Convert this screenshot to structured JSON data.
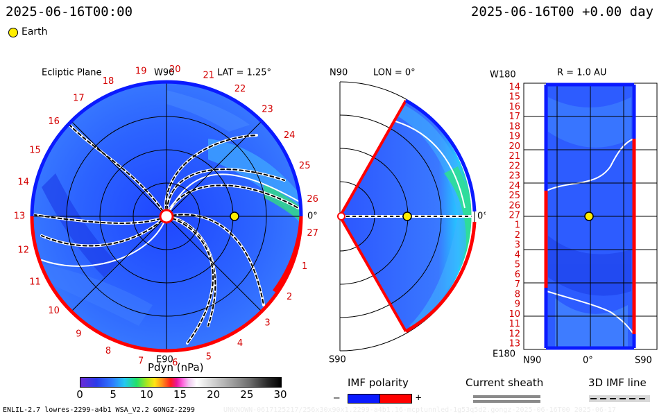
{
  "header": {
    "datetime_left": "2025-06-16T00:00",
    "datetime_right": "2025-06-16T00 +0.00 day",
    "legend_label": "Earth"
  },
  "ecliptic": {
    "title": "Ecliptic Plane",
    "lat": "LAT = 1.25°",
    "top_label": "W90",
    "bottom_label": "E90",
    "right_label": "0°",
    "sectors": [
      "19",
      "20",
      "21",
      "22",
      "23",
      "24",
      "25",
      "26",
      "27",
      "1",
      "2",
      "3",
      "4",
      "5",
      "6",
      "7",
      "8",
      "9",
      "10",
      "11",
      "12",
      "13",
      "14",
      "15",
      "16",
      "17",
      "18"
    ]
  },
  "meridional": {
    "title": "LON = 0°",
    "top_label": "N90",
    "bottom_label": "S90",
    "right_label": "0°"
  },
  "radial": {
    "title": "R = 1.0 AU",
    "top_label": "W180",
    "bottom_label": "E180",
    "x_left": "N90",
    "x_mid": "0°",
    "x_right": "S90",
    "rows": [
      "14",
      "15",
      "16",
      "17",
      "18",
      "19",
      "20",
      "21",
      "22",
      "23",
      "24",
      "25",
      "26",
      "27",
      "1",
      "2",
      "3",
      "4",
      "5",
      "6",
      "7",
      "8",
      "9",
      "10",
      "11",
      "12",
      "13"
    ]
  },
  "colorbar": {
    "title": "Pdyn (nPa)",
    "ticks": [
      "0",
      "5",
      "10",
      "15",
      "20",
      "25",
      "30"
    ]
  },
  "imf_legend": {
    "title": "IMF polarity",
    "minus": "–",
    "plus": "+"
  },
  "sheath_legend": {
    "title": "Current sheath"
  },
  "line_legend": {
    "title": "3D IMF line"
  },
  "footer": {
    "model": "ENLIL-2.7 lowres-2299-a4b1 WSA_V2.2 GONGZ-2299",
    "run": "UNKNOWN-0617125217/256x30x90x1.2299-a4b1.16-mcptunnled-1g53q5d2.gongz-2025-06-16T00   2025-06-17"
  },
  "colors": {
    "field_blue": "#2a5cff",
    "field_deep": "#1a3de8",
    "positive_red": "#ff0000",
    "negative_blue": "#0a1aff",
    "earth_yellow": "#ffee00",
    "label_red": "#d40000"
  }
}
